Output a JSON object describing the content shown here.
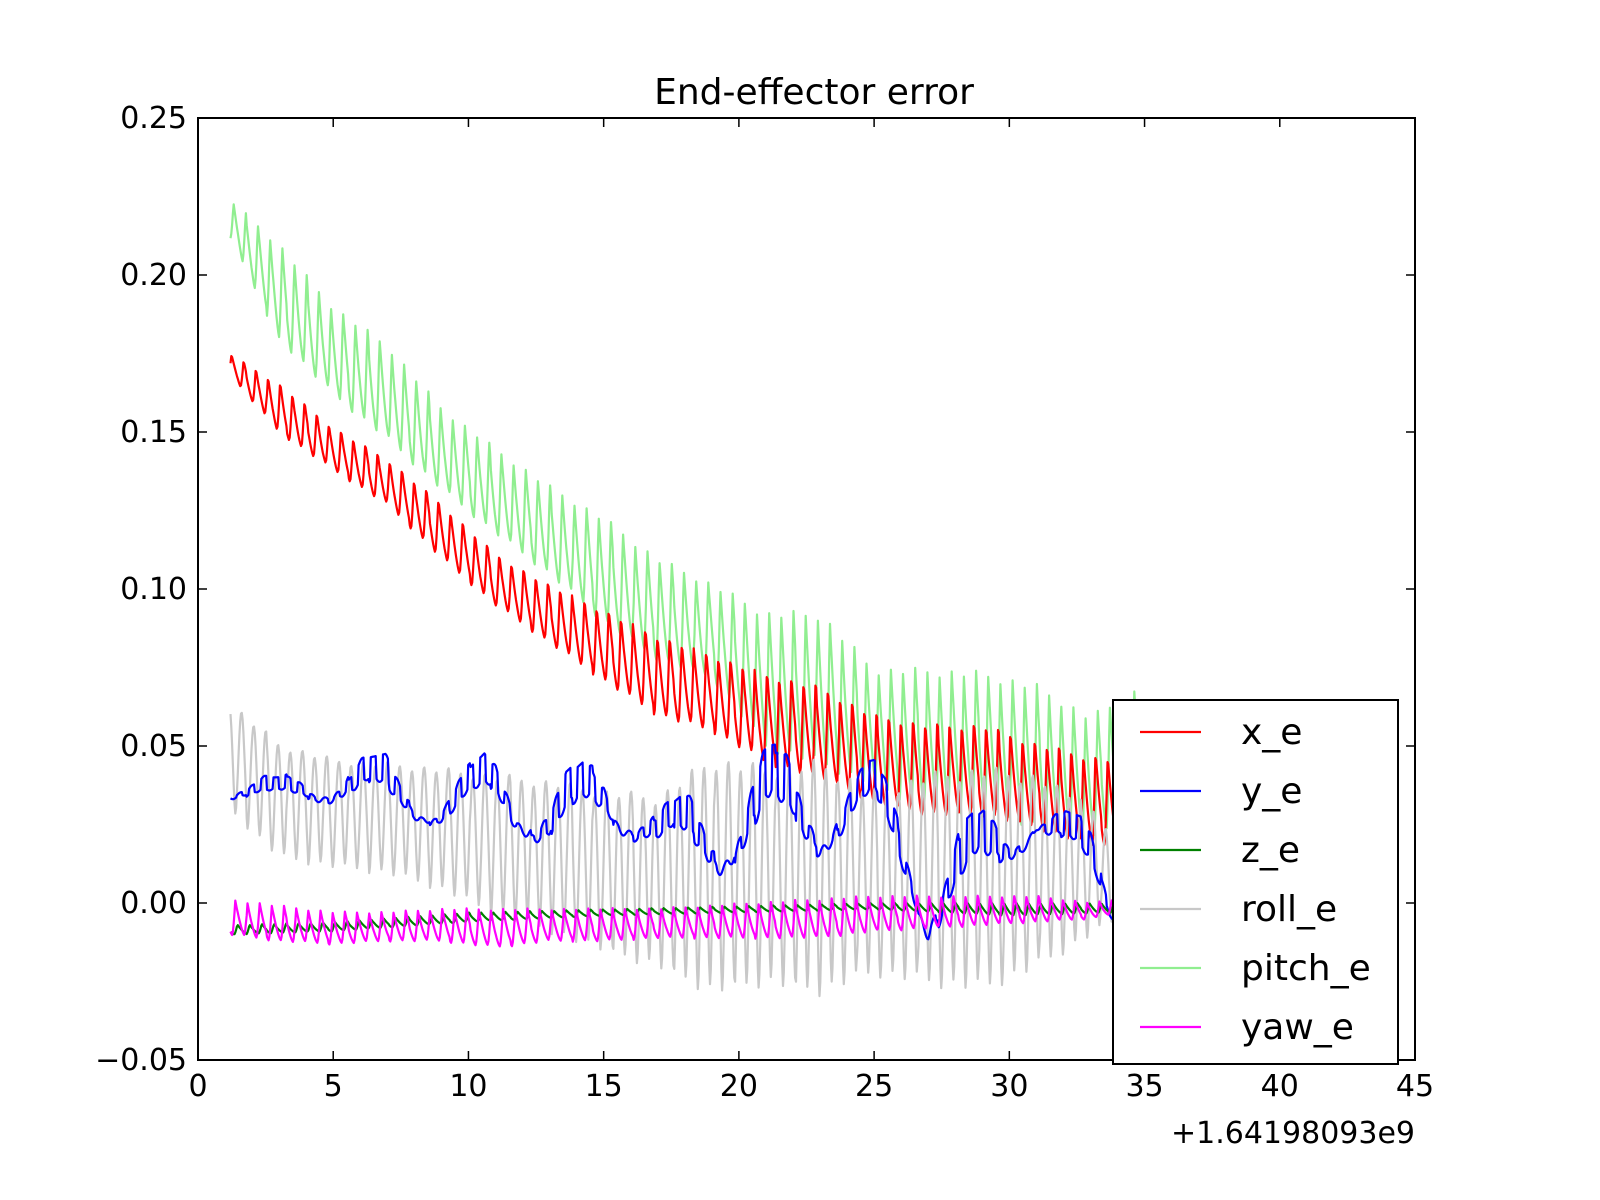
{
  "chart_data": {
    "type": "line",
    "title": "End-effector error",
    "xlabel": "",
    "ylabel": "",
    "x_offset_label": "+1.64198093e9",
    "xlim": [
      0,
      45
    ],
    "ylim": [
      -0.05,
      0.25
    ],
    "xticks": [
      0,
      5,
      10,
      15,
      20,
      25,
      30,
      35,
      40,
      45
    ],
    "xtick_labels": [
      "0",
      "5",
      "10",
      "15",
      "20",
      "25",
      "30",
      "35",
      "40",
      "45"
    ],
    "yticks": [
      -0.05,
      0.0,
      0.05,
      0.1,
      0.15,
      0.2,
      0.25
    ],
    "ytick_labels": [
      "−0.05",
      "0.00",
      "0.05",
      "0.10",
      "0.15",
      "0.20",
      "0.25"
    ],
    "grid": false,
    "legend_position": "lower-right",
    "oscillation_period": 0.45,
    "series": [
      {
        "name": "x_e",
        "color": "#ff0000",
        "x": [
          1.2,
          3,
          5,
          7,
          9,
          11,
          13,
          15,
          17,
          19,
          21,
          23,
          25,
          27,
          29,
          31,
          33,
          34
        ],
        "upper": [
          0.175,
          0.166,
          0.152,
          0.142,
          0.128,
          0.112,
          0.102,
          0.094,
          0.086,
          0.08,
          0.074,
          0.07,
          0.061,
          0.058,
          0.058,
          0.052,
          0.048,
          0.047
        ],
        "lower": [
          0.168,
          0.15,
          0.138,
          0.127,
          0.11,
          0.095,
          0.083,
          0.071,
          0.06,
          0.055,
          0.045,
          0.04,
          0.032,
          0.028,
          0.028,
          0.024,
          0.018,
          0.02
        ]
      },
      {
        "name": "y_e",
        "color": "#0000ff",
        "x": [
          1.2,
          3,
          5,
          7,
          9,
          11,
          13,
          15,
          17,
          19,
          21,
          23,
          25,
          27,
          29,
          31,
          33,
          34
        ],
        "upper": [
          0.041,
          0.04,
          0.047,
          0.047,
          0.037,
          0.05,
          0.038,
          0.049,
          0.03,
          0.04,
          0.05,
          0.045,
          0.045,
          0.02,
          0.03,
          0.035,
          0.025,
          0.005
        ],
        "lower": [
          0.033,
          0.031,
          0.032,
          0.028,
          0.024,
          0.028,
          0.015,
          0.025,
          0.015,
          0.008,
          0.015,
          0.015,
          0.025,
          -0.012,
          0.0,
          0.022,
          0.005,
          -0.01
        ]
      },
      {
        "name": "z_e",
        "color": "#008000",
        "x": [
          1.2,
          5,
          10,
          15,
          20,
          25,
          30,
          34
        ],
        "upper": [
          -0.007,
          -0.006,
          -0.003,
          -0.002,
          -0.001,
          0.0,
          0.0,
          0.0
        ],
        "lower": [
          -0.01,
          -0.009,
          -0.006,
          -0.004,
          -0.003,
          -0.002,
          -0.004,
          -0.003
        ]
      },
      {
        "name": "roll_e",
        "color": "#c8c8c8",
        "x": [
          1.2,
          3,
          5,
          7,
          9,
          11,
          13,
          15,
          17,
          19,
          21,
          23,
          25,
          27,
          29,
          31,
          33,
          34
        ],
        "upper": [
          0.063,
          0.05,
          0.045,
          0.044,
          0.042,
          0.04,
          0.038,
          0.035,
          0.033,
          0.045,
          0.042,
          0.044,
          0.035,
          0.04,
          0.042,
          0.04,
          0.03,
          0.02
        ],
        "lower": [
          0.03,
          0.015,
          0.012,
          0.01,
          0.005,
          -0.003,
          -0.008,
          -0.015,
          -0.02,
          -0.028,
          -0.025,
          -0.028,
          -0.022,
          -0.025,
          -0.027,
          -0.02,
          -0.01,
          -0.005
        ]
      },
      {
        "name": "pitch_e",
        "color": "#90ee90",
        "x": [
          1.2,
          3,
          5,
          7,
          9,
          11,
          13,
          15,
          17,
          19,
          21,
          23,
          25,
          27,
          29,
          31,
          33,
          35
        ],
        "upper": [
          0.224,
          0.21,
          0.19,
          0.178,
          0.158,
          0.145,
          0.133,
          0.123,
          0.11,
          0.102,
          0.093,
          0.093,
          0.075,
          0.075,
          0.074,
          0.07,
          0.06,
          0.07
        ],
        "lower": [
          0.212,
          0.18,
          0.162,
          0.148,
          0.132,
          0.118,
          0.105,
          0.09,
          0.078,
          0.072,
          0.05,
          0.045,
          0.038,
          0.03,
          0.03,
          0.025,
          0.02,
          0.035
        ]
      },
      {
        "name": "yaw_e",
        "color": "#ff00ff",
        "x": [
          1.2,
          3,
          5,
          7,
          9,
          11,
          13,
          15,
          17,
          19,
          21,
          23,
          25,
          27,
          29,
          31,
          33,
          34
        ],
        "upper": [
          0.001,
          -0.001,
          -0.003,
          -0.003,
          -0.002,
          -0.002,
          -0.002,
          -0.002,
          -0.002,
          -0.001,
          0.0,
          0.001,
          0.002,
          0.002,
          0.002,
          0.002,
          0.0,
          0.001
        ],
        "lower": [
          -0.01,
          -0.012,
          -0.013,
          -0.012,
          -0.012,
          -0.014,
          -0.012,
          -0.012,
          -0.011,
          -0.011,
          -0.011,
          -0.011,
          -0.009,
          -0.008,
          -0.007,
          -0.006,
          -0.005,
          -0.003
        ]
      }
    ]
  }
}
